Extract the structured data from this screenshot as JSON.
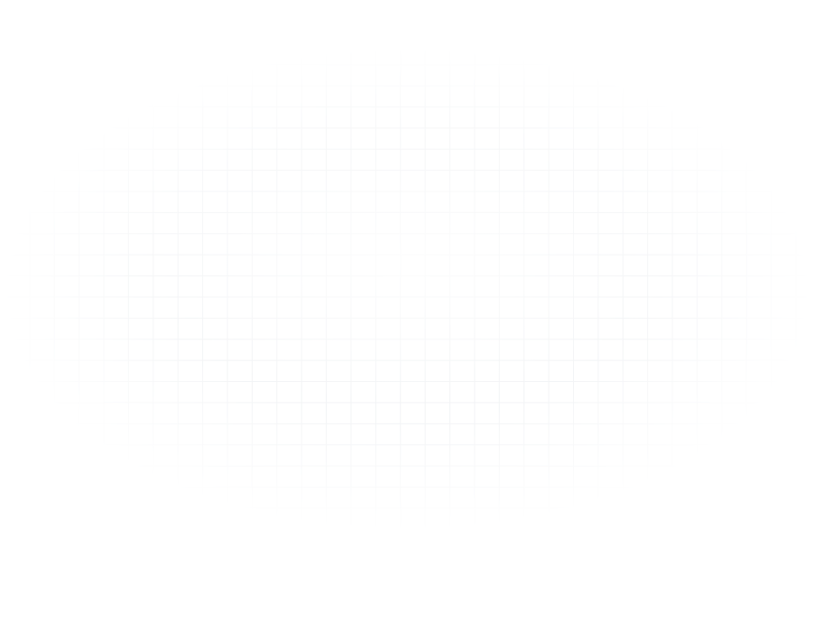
{
  "canvas": {
    "background_color": "#ffffff",
    "grid_line_color": "#e3e6ea"
  }
}
